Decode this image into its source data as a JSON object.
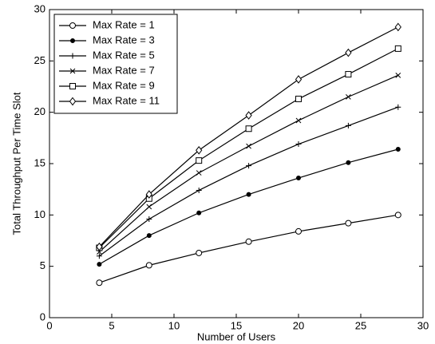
{
  "chart_data": {
    "type": "line",
    "x_label": "Number of Users",
    "y_label": "Total Throughput Per Time Slot",
    "x": [
      4,
      8,
      12,
      16,
      20,
      24,
      28
    ],
    "series": [
      {
        "name": "Max Rate = 1",
        "color": "#000000",
        "marker": "circle",
        "values": [
          3.4,
          5.1,
          6.3,
          7.4,
          8.4,
          9.2,
          10.0
        ]
      },
      {
        "name": "Max Rate = 3",
        "color": "#000000",
        "marker": "dot",
        "values": [
          5.2,
          8.0,
          10.2,
          12.0,
          13.6,
          15.1,
          16.4
        ]
      },
      {
        "name": "Max Rate = 5",
        "color": "#000000",
        "marker": "plus",
        "values": [
          6.0,
          9.6,
          12.4,
          14.8,
          16.9,
          18.7,
          20.5
        ]
      },
      {
        "name": "Max Rate = 7",
        "color": "#000000",
        "marker": "cross",
        "values": [
          6.4,
          10.8,
          14.1,
          16.7,
          19.2,
          21.5,
          23.6
        ]
      },
      {
        "name": "Max Rate = 9",
        "color": "#000000",
        "marker": "square",
        "values": [
          6.8,
          11.6,
          15.3,
          18.4,
          21.3,
          23.7,
          26.2
        ]
      },
      {
        "name": "Max Rate = 11",
        "color": "#000000",
        "marker": "diamond",
        "values": [
          6.9,
          12.0,
          16.3,
          19.7,
          23.2,
          25.8,
          28.3
        ]
      }
    ],
    "xlim": [
      0,
      30
    ],
    "xticks": [
      0,
      5,
      10,
      15,
      20,
      25,
      30
    ],
    "ylim": [
      0,
      30
    ],
    "yticks": [
      0,
      5,
      10,
      15,
      20,
      25,
      30
    ],
    "grid": false,
    "legend": "upper-left"
  }
}
